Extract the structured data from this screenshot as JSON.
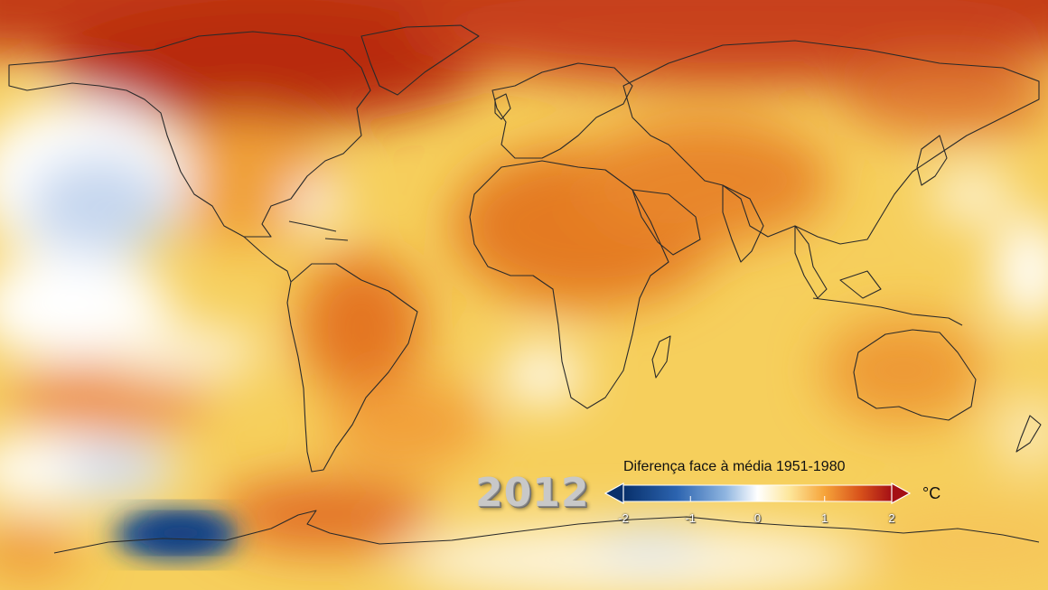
{
  "map": {
    "year": "2012",
    "legend": {
      "title": "Diferença face à média 1951-1980",
      "unit": "°C",
      "ticks": [
        "-2",
        "-1",
        "0",
        "1",
        "2"
      ],
      "range": [
        -2,
        2
      ],
      "colors": [
        "#08306b",
        "#2c64b0",
        "#8fb5e0",
        "#ffffff",
        "#fde69a",
        "#f6a43a",
        "#d9531b",
        "#a50f15"
      ]
    }
  }
}
